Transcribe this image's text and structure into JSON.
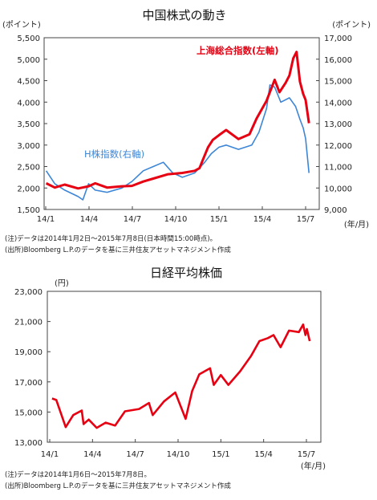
{
  "colors": {
    "red": "#e60012",
    "blue": "#3d86d6"
  },
  "chart_data": [
    {
      "type": "line",
      "title": "中国株式の動き",
      "y_left_unit": "(ポイント)",
      "y_right_unit": "(ポイント)",
      "x_unit": "(年/月)",
      "x_ticks": [
        "14/1",
        "14/4",
        "14/7",
        "14/10",
        "15/1",
        "15/4",
        "15/7"
      ],
      "y_left_ticks": [
        "5,500",
        "5,000",
        "4,500",
        "4,000",
        "3,500",
        "3,000",
        "2,500",
        "2,000",
        "1,500"
      ],
      "y_right_ticks": [
        "17,000",
        "16,000",
        "15,000",
        "14,000",
        "13,000",
        "12,000",
        "11,000",
        "10,000",
        "9,000"
      ],
      "ylim_left": [
        1500,
        5500
      ],
      "ylim_right": [
        9000,
        17000
      ],
      "series": [
        {
          "name": "上海総合指数(左軸)",
          "axis": "left",
          "color": "#e60012",
          "points": [
            [
              "2014-01-02",
              2110
            ],
            [
              "2014-01-20",
              2010
            ],
            [
              "2014-02-10",
              2080
            ],
            [
              "2014-03-10",
              1990
            ],
            [
              "2014-04-01",
              2040
            ],
            [
              "2014-04-15",
              2110
            ],
            [
              "2014-05-10",
              2010
            ],
            [
              "2014-06-10",
              2040
            ],
            [
              "2014-07-01",
              2050
            ],
            [
              "2014-07-25",
              2150
            ],
            [
              "2014-08-15",
              2220
            ],
            [
              "2014-09-15",
              2320
            ],
            [
              "2014-10-15",
              2350
            ],
            [
              "2014-11-10",
              2400
            ],
            [
              "2014-11-20",
              2460
            ],
            [
              "2014-11-28",
              2680
            ],
            [
              "2014-12-08",
              2950
            ],
            [
              "2014-12-18",
              3120
            ],
            [
              "2014-12-31",
              3230
            ],
            [
              "2015-01-15",
              3350
            ],
            [
              "2015-02-10",
              3140
            ],
            [
              "2015-03-05",
              3250
            ],
            [
              "2015-03-20",
              3620
            ],
            [
              "2015-04-10",
              4030
            ],
            [
              "2015-04-27",
              4520
            ],
            [
              "2015-05-07",
              4230
            ],
            [
              "2015-05-20",
              4450
            ],
            [
              "2015-05-28",
              4620
            ],
            [
              "2015-06-05",
              5020
            ],
            [
              "2015-06-12",
              5170
            ],
            [
              "2015-06-19",
              4480
            ],
            [
              "2015-06-26",
              4190
            ],
            [
              "2015-07-01",
              4050
            ],
            [
              "2015-07-08",
              3510
            ]
          ]
        },
        {
          "name": "H株指数(右軸)",
          "axis": "right",
          "color": "#3d86d6",
          "points": [
            [
              "2014-01-02",
              10800
            ],
            [
              "2014-01-20",
              10200
            ],
            [
              "2014-02-10",
              9900
            ],
            [
              "2014-03-10",
              9600
            ],
            [
              "2014-03-20",
              9450
            ],
            [
              "2014-04-01",
              10200
            ],
            [
              "2014-04-15",
              9900
            ],
            [
              "2014-05-10",
              9800
            ],
            [
              "2014-06-10",
              10000
            ],
            [
              "2014-07-01",
              10300
            ],
            [
              "2014-07-25",
              10800
            ],
            [
              "2014-08-15",
              11000
            ],
            [
              "2014-09-05",
              11200
            ],
            [
              "2014-09-25",
              10700
            ],
            [
              "2014-10-15",
              10500
            ],
            [
              "2014-11-10",
              10700
            ],
            [
              "2014-12-01",
              11200
            ],
            [
              "2014-12-15",
              11600
            ],
            [
              "2014-12-31",
              11900
            ],
            [
              "2015-01-15",
              12000
            ],
            [
              "2015-02-10",
              11800
            ],
            [
              "2015-03-10",
              12000
            ],
            [
              "2015-03-25",
              12600
            ],
            [
              "2015-04-10",
              13700
            ],
            [
              "2015-04-17",
              14800
            ],
            [
              "2015-04-27",
              14700
            ],
            [
              "2015-05-10",
              14000
            ],
            [
              "2015-05-28",
              14200
            ],
            [
              "2015-06-10",
              13800
            ],
            [
              "2015-06-19",
              13200
            ],
            [
              "2015-06-26",
              12800
            ],
            [
              "2015-07-01",
              12300
            ],
            [
              "2015-07-08",
              10700
            ]
          ]
        }
      ],
      "notes": [
        "(注)データは2014年1月2日～2015年7月8日(日本時間15:00時点)。",
        "(出所)Bloomberg L.P.のデータを基に三井住友アセットマネジメント作成"
      ]
    },
    {
      "type": "line",
      "title": "日経平均株価",
      "y_unit": "(円)",
      "x_unit": "(年/月)",
      "x_ticks": [
        "14/1",
        "14/4",
        "14/7",
        "14/10",
        "15/1",
        "15/4",
        "15/7"
      ],
      "y_ticks": [
        "23,000",
        "21,000",
        "19,000",
        "17,000",
        "15,000",
        "13,000"
      ],
      "ylim": [
        13000,
        23000
      ],
      "series": [
        {
          "name": "日経平均株価",
          "color": "#e60012",
          "points": [
            [
              "2014-01-06",
              15900
            ],
            [
              "2014-01-15",
              15800
            ],
            [
              "2014-02-04",
              14000
            ],
            [
              "2014-02-20",
              14800
            ],
            [
              "2014-03-10",
              15100
            ],
            [
              "2014-03-14",
              14200
            ],
            [
              "2014-03-25",
              14500
            ],
            [
              "2014-04-11",
              13950
            ],
            [
              "2014-04-30",
              14300
            ],
            [
              "2014-05-20",
              14100
            ],
            [
              "2014-06-10",
              15050
            ],
            [
              "2014-07-10",
              15200
            ],
            [
              "2014-07-31",
              15600
            ],
            [
              "2014-08-08",
              14800
            ],
            [
              "2014-09-01",
              15700
            ],
            [
              "2014-09-25",
              16300
            ],
            [
              "2014-10-17",
              14550
            ],
            [
              "2014-10-31",
              16400
            ],
            [
              "2014-11-15",
              17500
            ],
            [
              "2014-12-08",
              17900
            ],
            [
              "2014-12-16",
              16800
            ],
            [
              "2014-12-31",
              17450
            ],
            [
              "2015-01-16",
              16800
            ],
            [
              "2015-02-10",
              17700
            ],
            [
              "2015-03-05",
              18700
            ],
            [
              "2015-03-23",
              19700
            ],
            [
              "2015-04-10",
              19900
            ],
            [
              "2015-04-22",
              20100
            ],
            [
              "2015-05-07",
              19300
            ],
            [
              "2015-05-25",
              20400
            ],
            [
              "2015-06-15",
              20300
            ],
            [
              "2015-06-24",
              20800
            ],
            [
              "2015-06-29",
              20100
            ],
            [
              "2015-07-02",
              20500
            ],
            [
              "2015-07-08",
              19700
            ]
          ]
        }
      ],
      "notes": [
        "(注)データは2014年1月6日～2015年7月8日。",
        "(出所)Bloomberg L.P.のデータを基に三井住友アセットマネジメント作成"
      ]
    }
  ]
}
